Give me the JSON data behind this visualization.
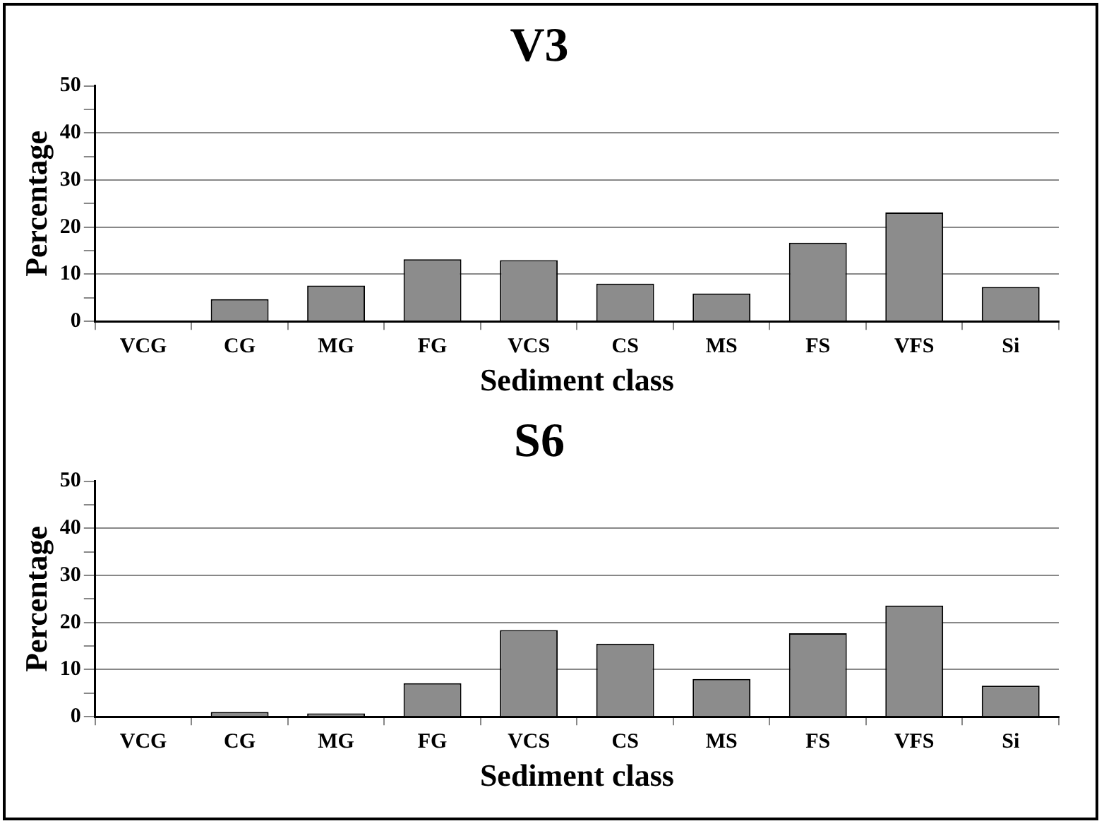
{
  "chart_data": [
    {
      "type": "bar",
      "title": "V3",
      "xlabel": "Sediment class",
      "ylabel": "Percentage",
      "categories": [
        "VCG",
        "CG",
        "MG",
        "FG",
        "VCS",
        "CS",
        "MS",
        "FS",
        "VFS",
        "Si"
      ],
      "values": [
        0,
        4.7,
        7.6,
        13.2,
        13,
        8,
        5.9,
        16.7,
        23.1,
        7.3
      ],
      "color": "#8c8c8c",
      "ylim": [
        0,
        50
      ],
      "yticks": [
        0,
        {
          "value": 5,
          "label": null
        },
        10,
        {
          "value": 15,
          "label": null
        },
        20,
        {
          "value": 25,
          "label": null
        },
        30,
        {
          "value": 35,
          "label": null
        },
        40,
        {
          "value": 45,
          "label": null
        },
        50
      ],
      "grid": "y"
    },
    {
      "type": "bar",
      "title": "S6",
      "xlabel": "Sediment class",
      "ylabel": "Percentage",
      "categories": [
        "VCG",
        "CG",
        "MG",
        "FG",
        "VCS",
        "CS",
        "MS",
        "FS",
        "VFS",
        "Si"
      ],
      "values": [
        0,
        1,
        0.7,
        7.1,
        18.4,
        15.5,
        8,
        17.7,
        23.6,
        6.6
      ],
      "color": "#8c8c8c",
      "ylim": [
        0,
        50
      ],
      "yticks": [
        0,
        {
          "value": 5,
          "label": null
        },
        10,
        {
          "value": 15,
          "label": null
        },
        20,
        {
          "value": 25,
          "label": null
        },
        30,
        {
          "value": 35,
          "label": null
        },
        40,
        {
          "value": 45,
          "label": null
        },
        50
      ],
      "grid": "y"
    }
  ]
}
